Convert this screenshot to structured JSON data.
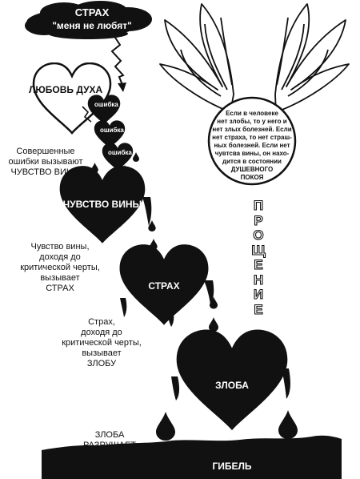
{
  "cloud": {
    "line1": "СТРАХ",
    "line2": "\"меня не любят\""
  },
  "love_heart": {
    "label": "ЛЮБОВЬ ДУХА"
  },
  "mistake_hearts": [
    "ошибка",
    "ошибка",
    "ошибка"
  ],
  "wings_circle": {
    "lines": [
      "Если в человеке",
      "нет злобы, то у него и",
      "нет злых болезней. Если",
      "нет страха, то нет страш-",
      "ных болезней. Если нет",
      "чувтсва вины, он нахо-",
      "дится в состоянии",
      "ДУШЕВНОГО",
      "ПОКОЯ"
    ]
  },
  "vertical_word": [
    "П",
    "Р",
    "О",
    "Щ",
    "Е",
    "Н",
    "И",
    "Е"
  ],
  "notes": {
    "errors_guilt": [
      "Совершенные",
      "ошибки вызывают",
      "ЧУВСТВО ВИНЫ"
    ],
    "guilt_fear": [
      "Чувство вины,",
      "доходя до",
      "критической черты,",
      "вызывает",
      "СТРАХ"
    ],
    "fear_anger": [
      "Страх,",
      "доходя до",
      "критической черты,",
      "вызывает",
      "ЗЛОБУ"
    ],
    "anger_destroys": [
      "ЗЛОБА",
      "РАЗРУШАЕТ ЧЕЛОВЕКА"
    ]
  },
  "hearts": {
    "guilt": "ЧУВСТВО ВИНЫ",
    "fear": "СТРАХ",
    "anger": "ЗЛОБА"
  },
  "ground": {
    "label": "ГИБЕЛЬ"
  },
  "colors": {
    "ink": "#111111",
    "paper": "#ffffff"
  }
}
